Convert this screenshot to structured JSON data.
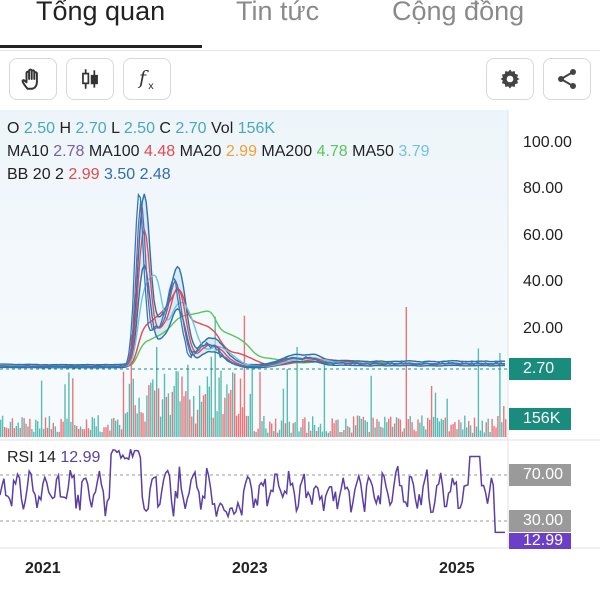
{
  "tabs": [
    {
      "label": "Tổng quan",
      "active": true
    },
    {
      "label": "Tin tức",
      "active": false
    },
    {
      "label": "Cộng đồng",
      "active": false
    }
  ],
  "toolbar": {
    "left_icons": [
      "hand-icon",
      "candlestick-icon",
      "function-icon"
    ],
    "right_icons": [
      "gear-icon",
      "share-icon"
    ]
  },
  "ohlc": {
    "o_label": "O",
    "o": "2.50",
    "h_label": "H",
    "h": "2.70",
    "l_label": "L",
    "l": "2.50",
    "c_label": "C",
    "c": "2.70",
    "vol_label": "Vol",
    "vol": "156K"
  },
  "ma": {
    "ma10_label": "MA10",
    "ma10": "2.78",
    "ma100_label": "MA100",
    "ma100": "4.48",
    "ma20_label": "MA20",
    "ma20": "2.99",
    "ma200_label": "MA200",
    "ma200": "4.78",
    "ma50_label": "MA50",
    "ma50": "3.79"
  },
  "bb": {
    "label": "BB 20 2",
    "upper": "2.99",
    "middle": "3.50",
    "lower": "2.48"
  },
  "price_axis": [
    "100.00",
    "80.00",
    "60.00",
    "40.00",
    "20.00"
  ],
  "price_tag": "2.70",
  "volume_tag": "156K",
  "rsi": {
    "label": "RSI 14",
    "value": "12.99",
    "upper": "70.00",
    "lower": "30.00"
  },
  "x_axis": [
    "2021",
    "2023",
    "2025"
  ],
  "colors": {
    "ma10": "#7b5ea7",
    "ma100": "#e5484d",
    "ma20": "#f0a030",
    "ma200": "#5cc45c",
    "ma50": "#6cc3e6",
    "bb_upper": "#e5484d",
    "bb_middle": "#2f6fab",
    "bb_lower": "#2f6fab",
    "ohlc_value": "#4aa8b8",
    "price_tag": "#1a8c7e",
    "rsi_line": "#5b3fa8",
    "rsi_tag": "#6b3fc8",
    "level_tag": "#9a9a9a"
  },
  "chart_data": {
    "type": "line",
    "x": [
      "2021",
      "2023",
      "2025"
    ],
    "series": [
      {
        "name": "MA10",
        "last": 2.78
      },
      {
        "name": "MA100",
        "last": 4.48
      },
      {
        "name": "MA20",
        "last": 2.99
      },
      {
        "name": "MA200",
        "last": 4.78
      },
      {
        "name": "MA50",
        "last": 3.79
      }
    ],
    "ohlc": {
      "open": 2.5,
      "high": 2.7,
      "low": 2.5,
      "close": 2.7
    },
    "volume": "156K",
    "bollinger": {
      "upper": 2.99,
      "middle": 3.5,
      "lower": 2.48
    },
    "rsi": {
      "period": 14,
      "value": 12.99,
      "overbought": 70,
      "oversold": 30
    },
    "ylim": [
      0,
      100
    ],
    "price_peak": 85,
    "grid": false
  }
}
